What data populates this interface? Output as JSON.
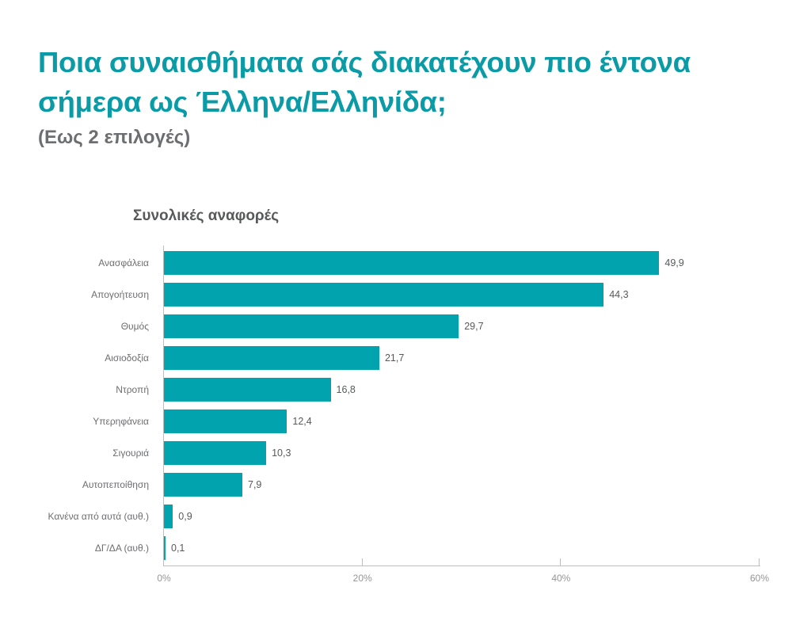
{
  "header": {
    "title": "Ποια συναισθήματα σάς διακατέχουν πιο έντονα σήμερα ως Έλληνα/Ελληνίδα;",
    "subtitle": "(Εως 2 επιλογές)"
  },
  "colors": {
    "title": "#0a9ba6",
    "bar": "#00a3ae",
    "subtitle": "#6d6e71",
    "axis": "#bcbec0"
  },
  "chart_data": {
    "type": "bar",
    "orientation": "horizontal",
    "title": "Συνολικές αναφορές",
    "categories": [
      "Ανασφάλεια",
      "Απογοήτευση",
      "Θυμός",
      "Αισιοδοξία",
      "Ντροπή",
      "Υπερηφάνεια",
      "Σιγουριά",
      "Αυτοπεποίθηση",
      "Κανένα από αυτά (αυθ.)",
      "ΔΓ/ΔΑ (αυθ.)"
    ],
    "values": [
      49.9,
      44.3,
      29.7,
      21.7,
      16.8,
      12.4,
      10.3,
      7.9,
      0.9,
      0.1
    ],
    "value_labels": [
      "49,9",
      "44,3",
      "29,7",
      "21,7",
      "16,8",
      "12,4",
      "10,3",
      "7,9",
      "0,9",
      "0,1"
    ],
    "xlabel": "",
    "ylabel": "",
    "xlim": [
      0,
      60
    ],
    "x_ticks": [
      "0%",
      "20%",
      "40%",
      "60%"
    ],
    "grid": false,
    "legend": null
  }
}
